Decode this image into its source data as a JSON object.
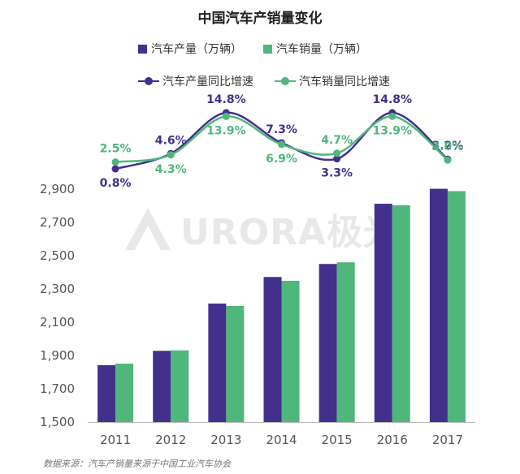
{
  "chart_data": {
    "type": "bar",
    "title": "中国汽车产销量变化",
    "categories": [
      "2011",
      "2012",
      "2013",
      "2014",
      "2015",
      "2016",
      "2017"
    ],
    "series": [
      {
        "name": "汽车产量（万辆）",
        "type": "bar",
        "values": [
          1842,
          1928,
          2212,
          2372,
          2450,
          2812,
          2902
        ],
        "color": "#42308c"
      },
      {
        "name": "汽车销量（万辆）",
        "type": "bar",
        "values": [
          1851,
          1931,
          2198,
          2349,
          2460,
          2803,
          2888
        ],
        "color": "#4fb77c"
      },
      {
        "name": "汽车产量同比增速",
        "type": "line",
        "values": [
          0.8,
          4.6,
          14.8,
          7.3,
          3.3,
          14.8,
          3.2
        ],
        "labels": [
          "0.8%",
          "4.6%",
          "14.8%",
          "7.3%",
          "3.3%",
          "14.8%",
          "3.2%"
        ],
        "color": "#42308c"
      },
      {
        "name": "汽车销量同比增速",
        "type": "line",
        "values": [
          2.5,
          4.3,
          13.9,
          6.9,
          4.7,
          13.9,
          3.0
        ],
        "labels": [
          "2.5%",
          "4.3%",
          "13.9%",
          "6.9%",
          "4.7%",
          "13.9%",
          "3.0%"
        ],
        "color": "#4fb77c"
      }
    ],
    "ylim": [
      1500,
      2900
    ],
    "yticks": [
      1500,
      1700,
      1900,
      2100,
      2300,
      2500,
      2700,
      2900
    ],
    "ytick_labels": [
      "1,500",
      "1,700",
      "1,900",
      "2,100",
      "2,300",
      "2,500",
      "2,700",
      "2,900"
    ],
    "grid": false,
    "legend": "top"
  },
  "source_note": "数据来源：汽车产销量来源于中国工业汽车协会",
  "watermark": {
    "text": "URORA极光"
  }
}
